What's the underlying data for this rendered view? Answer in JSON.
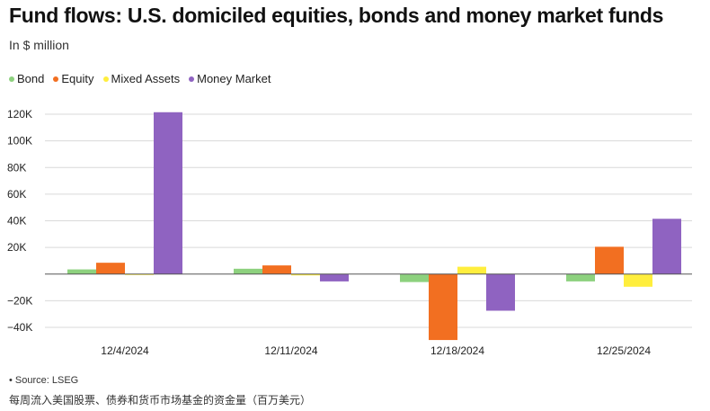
{
  "title": "Fund flows: U.S. domiciled equities, bonds and money market funds",
  "subtitle": "In $ million",
  "source": "• Source: LSEG",
  "caption": "每周流入美国股票、债券和货币市场基金的资金量（百万美元）",
  "chart_data": {
    "type": "bar",
    "title": "Fund flows: U.S. domiciled equities, bonds and money market funds",
    "subtitle": "In $ million",
    "xlabel": "",
    "ylabel": "",
    "categories": [
      "12/4/2024",
      "12/11/2024",
      "12/18/2024",
      "12/25/2024"
    ],
    "ylim": [
      -45000,
      125000
    ],
    "yticks": [
      -40000,
      -20000,
      0,
      20000,
      40000,
      60000,
      80000,
      100000,
      120000
    ],
    "ytick_labels": [
      "−40K",
      "−20K",
      "",
      "20K",
      "40K",
      "60K",
      "80K",
      "100K",
      "120K"
    ],
    "grid": true,
    "legend_position": "top-left",
    "series": [
      {
        "name": "Bond",
        "color": "#8dd17e",
        "values": [
          3500,
          4000,
          -6000,
          -5500
        ]
      },
      {
        "name": "Equity",
        "color": "#f26f21",
        "values": [
          8500,
          6500,
          -49500,
          20500
        ]
      },
      {
        "name": "Mixed Assets",
        "color": "#ffee3d",
        "values": [
          -300,
          -1000,
          5500,
          -9500
        ]
      },
      {
        "name": "Money Market",
        "color": "#8f63c1",
        "values": [
          121500,
          -5500,
          -27500,
          41500
        ]
      }
    ]
  }
}
